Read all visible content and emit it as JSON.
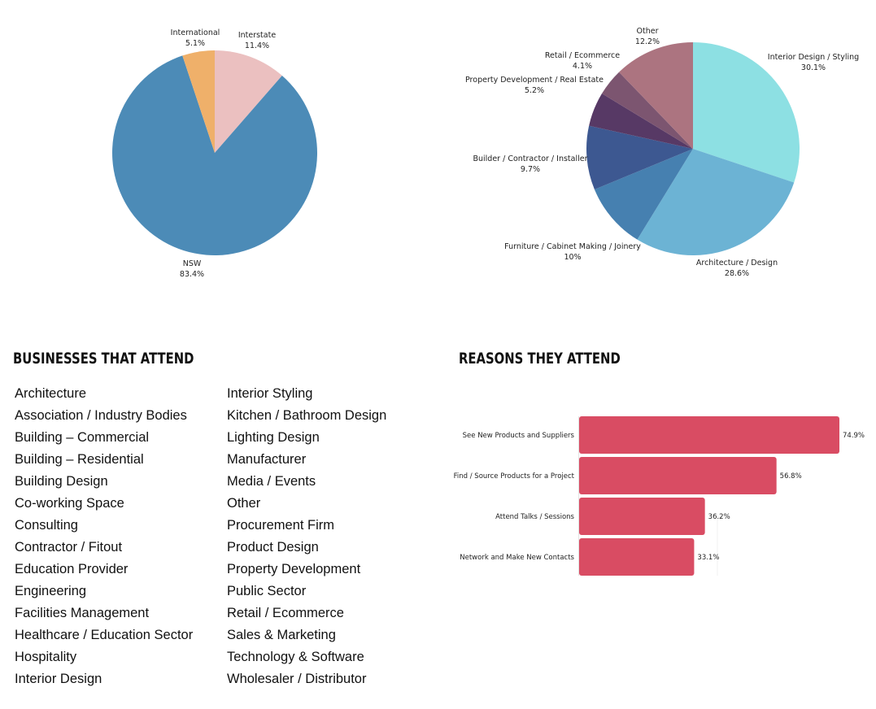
{
  "chart_data": [
    {
      "type": "pie",
      "slices": [
        {
          "label": "Interstate",
          "value": 11.4,
          "display": "11.4%",
          "color": "#EBC0C0"
        },
        {
          "label": "NSW",
          "value": 83.4,
          "display": "83.4%",
          "color": "#4C8BB7"
        },
        {
          "label": "International",
          "value": 5.1,
          "display": "5.1%",
          "color": "#EFB06A"
        }
      ]
    },
    {
      "type": "pie",
      "slices": [
        {
          "label": "Interior Design / Styling",
          "value": 30.1,
          "display": "30.1%",
          "color": "#8DE0E3"
        },
        {
          "label": "Architecture / Design",
          "value": 28.6,
          "display": "28.6%",
          "color": "#6CB3D4"
        },
        {
          "label": "Furniture / Cabinet Making / Joinery",
          "value": 10,
          "display": "10%",
          "color": "#4680B0"
        },
        {
          "label": "Builder / Contractor / Installer",
          "value": 9.7,
          "display": "9.7%",
          "color": "#3D5891"
        },
        {
          "label": "Property Development / Real Estate",
          "value": 5.2,
          "display": "5.2%",
          "color": "#573965"
        },
        {
          "label": "Retail / Ecommerce",
          "value": 4.1,
          "display": "4.1%",
          "color": "#7C5570"
        },
        {
          "label": "Other",
          "value": 12.2,
          "display": "12.2%",
          "color": "#AC7480"
        }
      ]
    },
    {
      "type": "bar",
      "orientation": "horizontal",
      "title": "REASONS THEY ATTEND",
      "categories": [
        "See New Products and Suppliers",
        "Find / Source Products for a Project",
        "Attend Talks / Sessions",
        "Network and Make New Contacts"
      ],
      "values": [
        74.9,
        56.8,
        36.2,
        33.1
      ],
      "value_labels": [
        "74.9%",
        "56.8%",
        "36.2%",
        "33.1%"
      ],
      "color": "#D94C63"
    }
  ],
  "businesses": {
    "heading": "BUSINESSES THAT ATTEND",
    "column1": [
      "Architecture",
      "Association / Industry Bodies",
      "Building – Commercial",
      "Building – Residential",
      "Building Design",
      "Co-working Space",
      "Consulting",
      "Contractor / Fitout",
      "Education Provider",
      "Engineering",
      "Facilities Management",
      "Healthcare / Education Sector",
      "Hospitality",
      "Interior Design"
    ],
    "column2": [
      "Interior Styling",
      "Kitchen / Bathroom Design",
      "Lighting Design",
      "Manufacturer",
      "Media / Events",
      "Other",
      "Procurement Firm",
      "Product Design",
      "Property Development",
      "Public Sector",
      "Retail / Ecommerce",
      "Sales & Marketing",
      "Technology & Software",
      "Wholesaler / Distributor"
    ]
  },
  "reasons": {
    "heading": "REASONS THEY ATTEND"
  }
}
